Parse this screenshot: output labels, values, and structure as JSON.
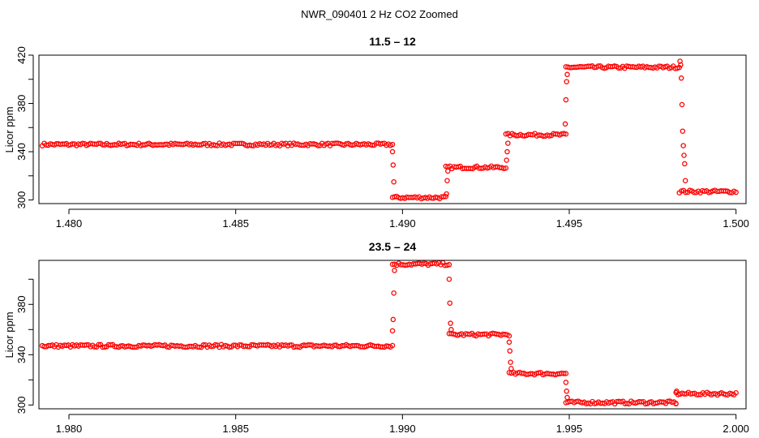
{
  "figure_title": "NWR_090401  2 Hz CO2 Zoomed",
  "colors": {
    "series": "#ff0000",
    "axis": "#000000",
    "background": "#ffffff"
  },
  "chart_data": [
    {
      "type": "scatter",
      "title": "11.5 – 12",
      "xlabel": "",
      "ylabel": "Licor ppm",
      "xlim": [
        1.4791,
        1.5003
      ],
      "ylim": [
        297,
        420
      ],
      "xticks": [
        1.48,
        1.485,
        1.49,
        1.495,
        1.5
      ],
      "xtick_labels": [
        "1.480",
        "1.485",
        "1.490",
        "1.495",
        "1.500"
      ],
      "yticks": [
        300,
        320,
        340,
        360,
        380,
        400,
        420
      ],
      "ytick_labels": [
        "300",
        "",
        "340",
        "",
        "380",
        "",
        "420"
      ],
      "marker": "open-circle",
      "grid": false,
      "segments": [
        {
          "x_start": 1.4792,
          "x_end": 1.4897,
          "level": 346
        },
        {
          "x_start": 1.4897,
          "x_end": 1.4913,
          "level": 302
        },
        {
          "x_start": 1.4913,
          "x_end": 1.4931,
          "level": 327
        },
        {
          "x_start": 1.4931,
          "x_end": 1.4949,
          "level": 354
        },
        {
          "x_start": 1.4949,
          "x_end": 1.4983,
          "level": 410
        },
        {
          "x_start": 1.4983,
          "x_end": 1.5,
          "level": 307
        }
      ],
      "transition_points": [
        {
          "x": 1.4897,
          "y": 340
        },
        {
          "x": 1.48972,
          "y": 329
        },
        {
          "x": 1.48974,
          "y": 315
        },
        {
          "x": 1.49132,
          "y": 305
        },
        {
          "x": 1.49134,
          "y": 316
        },
        {
          "x": 1.49136,
          "y": 324
        },
        {
          "x": 1.49312,
          "y": 333
        },
        {
          "x": 1.49314,
          "y": 340
        },
        {
          "x": 1.49316,
          "y": 347
        },
        {
          "x": 1.49488,
          "y": 363
        },
        {
          "x": 1.4949,
          "y": 383
        },
        {
          "x": 1.49492,
          "y": 398
        },
        {
          "x": 1.49494,
          "y": 404
        },
        {
          "x": 1.49832,
          "y": 415
        },
        {
          "x": 1.49834,
          "y": 412
        },
        {
          "x": 1.49836,
          "y": 401
        },
        {
          "x": 1.49838,
          "y": 379
        },
        {
          "x": 1.4984,
          "y": 357
        },
        {
          "x": 1.49842,
          "y": 345
        },
        {
          "x": 1.49844,
          "y": 337
        },
        {
          "x": 1.49846,
          "y": 330
        },
        {
          "x": 1.49848,
          "y": 316
        }
      ]
    },
    {
      "type": "scatter",
      "title": "23.5 – 24",
      "xlabel": "",
      "ylabel": "Licor ppm",
      "xlim": [
        1.9791,
        2.0003
      ],
      "ylim": [
        297,
        415
      ],
      "xticks": [
        1.98,
        1.985,
        1.99,
        1.995,
        2.0
      ],
      "xtick_labels": [
        "1.980",
        "1.985",
        "1.990",
        "1.995",
        "2.000"
      ],
      "yticks": [
        300,
        320,
        340,
        360,
        380,
        400
      ],
      "ytick_labels": [
        "300",
        "",
        "340",
        "",
        "380",
        ""
      ],
      "marker": "open-circle",
      "grid": false,
      "segments": [
        {
          "x_start": 1.9792,
          "x_end": 1.9897,
          "level": 347
        },
        {
          "x_start": 1.9897,
          "x_end": 1.9914,
          "level": 412
        },
        {
          "x_start": 1.9914,
          "x_end": 1.9932,
          "level": 356
        },
        {
          "x_start": 1.9932,
          "x_end": 1.9949,
          "level": 325
        },
        {
          "x_start": 1.9949,
          "x_end": 1.9982,
          "level": 302
        },
        {
          "x_start": 1.9982,
          "x_end": 2.0,
          "level": 309
        }
      ],
      "transition_points": [
        {
          "x": 1.9897,
          "y": 359
        },
        {
          "x": 1.98972,
          "y": 368
        },
        {
          "x": 1.98974,
          "y": 389
        },
        {
          "x": 1.98976,
          "y": 407
        },
        {
          "x": 1.9914,
          "y": 400
        },
        {
          "x": 1.99142,
          "y": 381
        },
        {
          "x": 1.99144,
          "y": 365
        },
        {
          "x": 1.99146,
          "y": 360
        },
        {
          "x": 1.9932,
          "y": 350
        },
        {
          "x": 1.99322,
          "y": 343
        },
        {
          "x": 1.99324,
          "y": 334
        },
        {
          "x": 1.99326,
          "y": 329
        },
        {
          "x": 1.9949,
          "y": 318
        },
        {
          "x": 1.99492,
          "y": 311
        },
        {
          "x": 1.99494,
          "y": 306
        },
        {
          "x": 1.9982,
          "y": 301
        },
        {
          "x": 1.99822,
          "y": 311
        }
      ]
    }
  ]
}
